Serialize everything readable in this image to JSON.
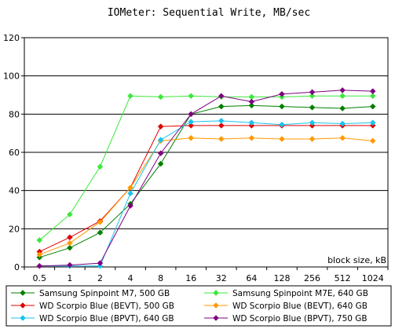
{
  "chart_data": {
    "type": "line",
    "title": "IOMeter: Sequential  Write, MB/sec",
    "xlabel": "block size, kB",
    "ylabel": "",
    "x": [
      "0.5",
      "1",
      "2",
      "4",
      "8",
      "16",
      "32",
      "64",
      "128",
      "256",
      "512",
      "1024"
    ],
    "ylim": [
      0,
      120
    ],
    "yticks": [
      0,
      20,
      40,
      60,
      80,
      100,
      120
    ],
    "grid": true,
    "legend_position": "bottom",
    "series": [
      {
        "name": "Samsung Spinpoint M7, 500 GB",
        "color": "#007f00",
        "marker": "diamond",
        "values": [
          5,
          10,
          18,
          33,
          54,
          80,
          84,
          84.5,
          84,
          83.5,
          83,
          84
        ]
      },
      {
        "name": "Samsung Spinpoint M7E, 640 GB",
        "color": "#3ae83a",
        "marker": "diamond",
        "values": [
          14,
          27.5,
          52.5,
          89.5,
          89,
          89.5,
          89,
          89,
          89,
          89.5,
          89.5,
          89.5
        ]
      },
      {
        "name": "WD Scorpio Blue (BEVT), 500 GB",
        "color": "#e00000",
        "marker": "diamond",
        "values": [
          8,
          15.5,
          24,
          41.5,
          73.5,
          74,
          74,
          74,
          74,
          74,
          74,
          74
        ]
      },
      {
        "name": "WD Scorpio Blue (BEVT), 640 GB",
        "color": "#ff9900",
        "marker": "diamond",
        "values": [
          6.5,
          12.5,
          23.5,
          41.5,
          66,
          67.5,
          67,
          67.5,
          67,
          67,
          67.5,
          66
        ]
      },
      {
        "name": "WD Scorpio Blue (BPVT), 640 GB",
        "color": "#19c3f0",
        "marker": "diamond",
        "values": [
          0.5,
          0.5,
          0.5,
          38.5,
          66.5,
          76,
          76.5,
          75.5,
          74.5,
          75.5,
          75,
          75.5
        ]
      },
      {
        "name": "WD Scorpio Blue (BPVT), 750 GB",
        "color": "#7f007f",
        "marker": "diamond",
        "values": [
          0.5,
          1,
          2,
          32,
          59.5,
          80,
          89.5,
          86.5,
          90.5,
          91.5,
          92.5,
          92
        ]
      }
    ]
  }
}
